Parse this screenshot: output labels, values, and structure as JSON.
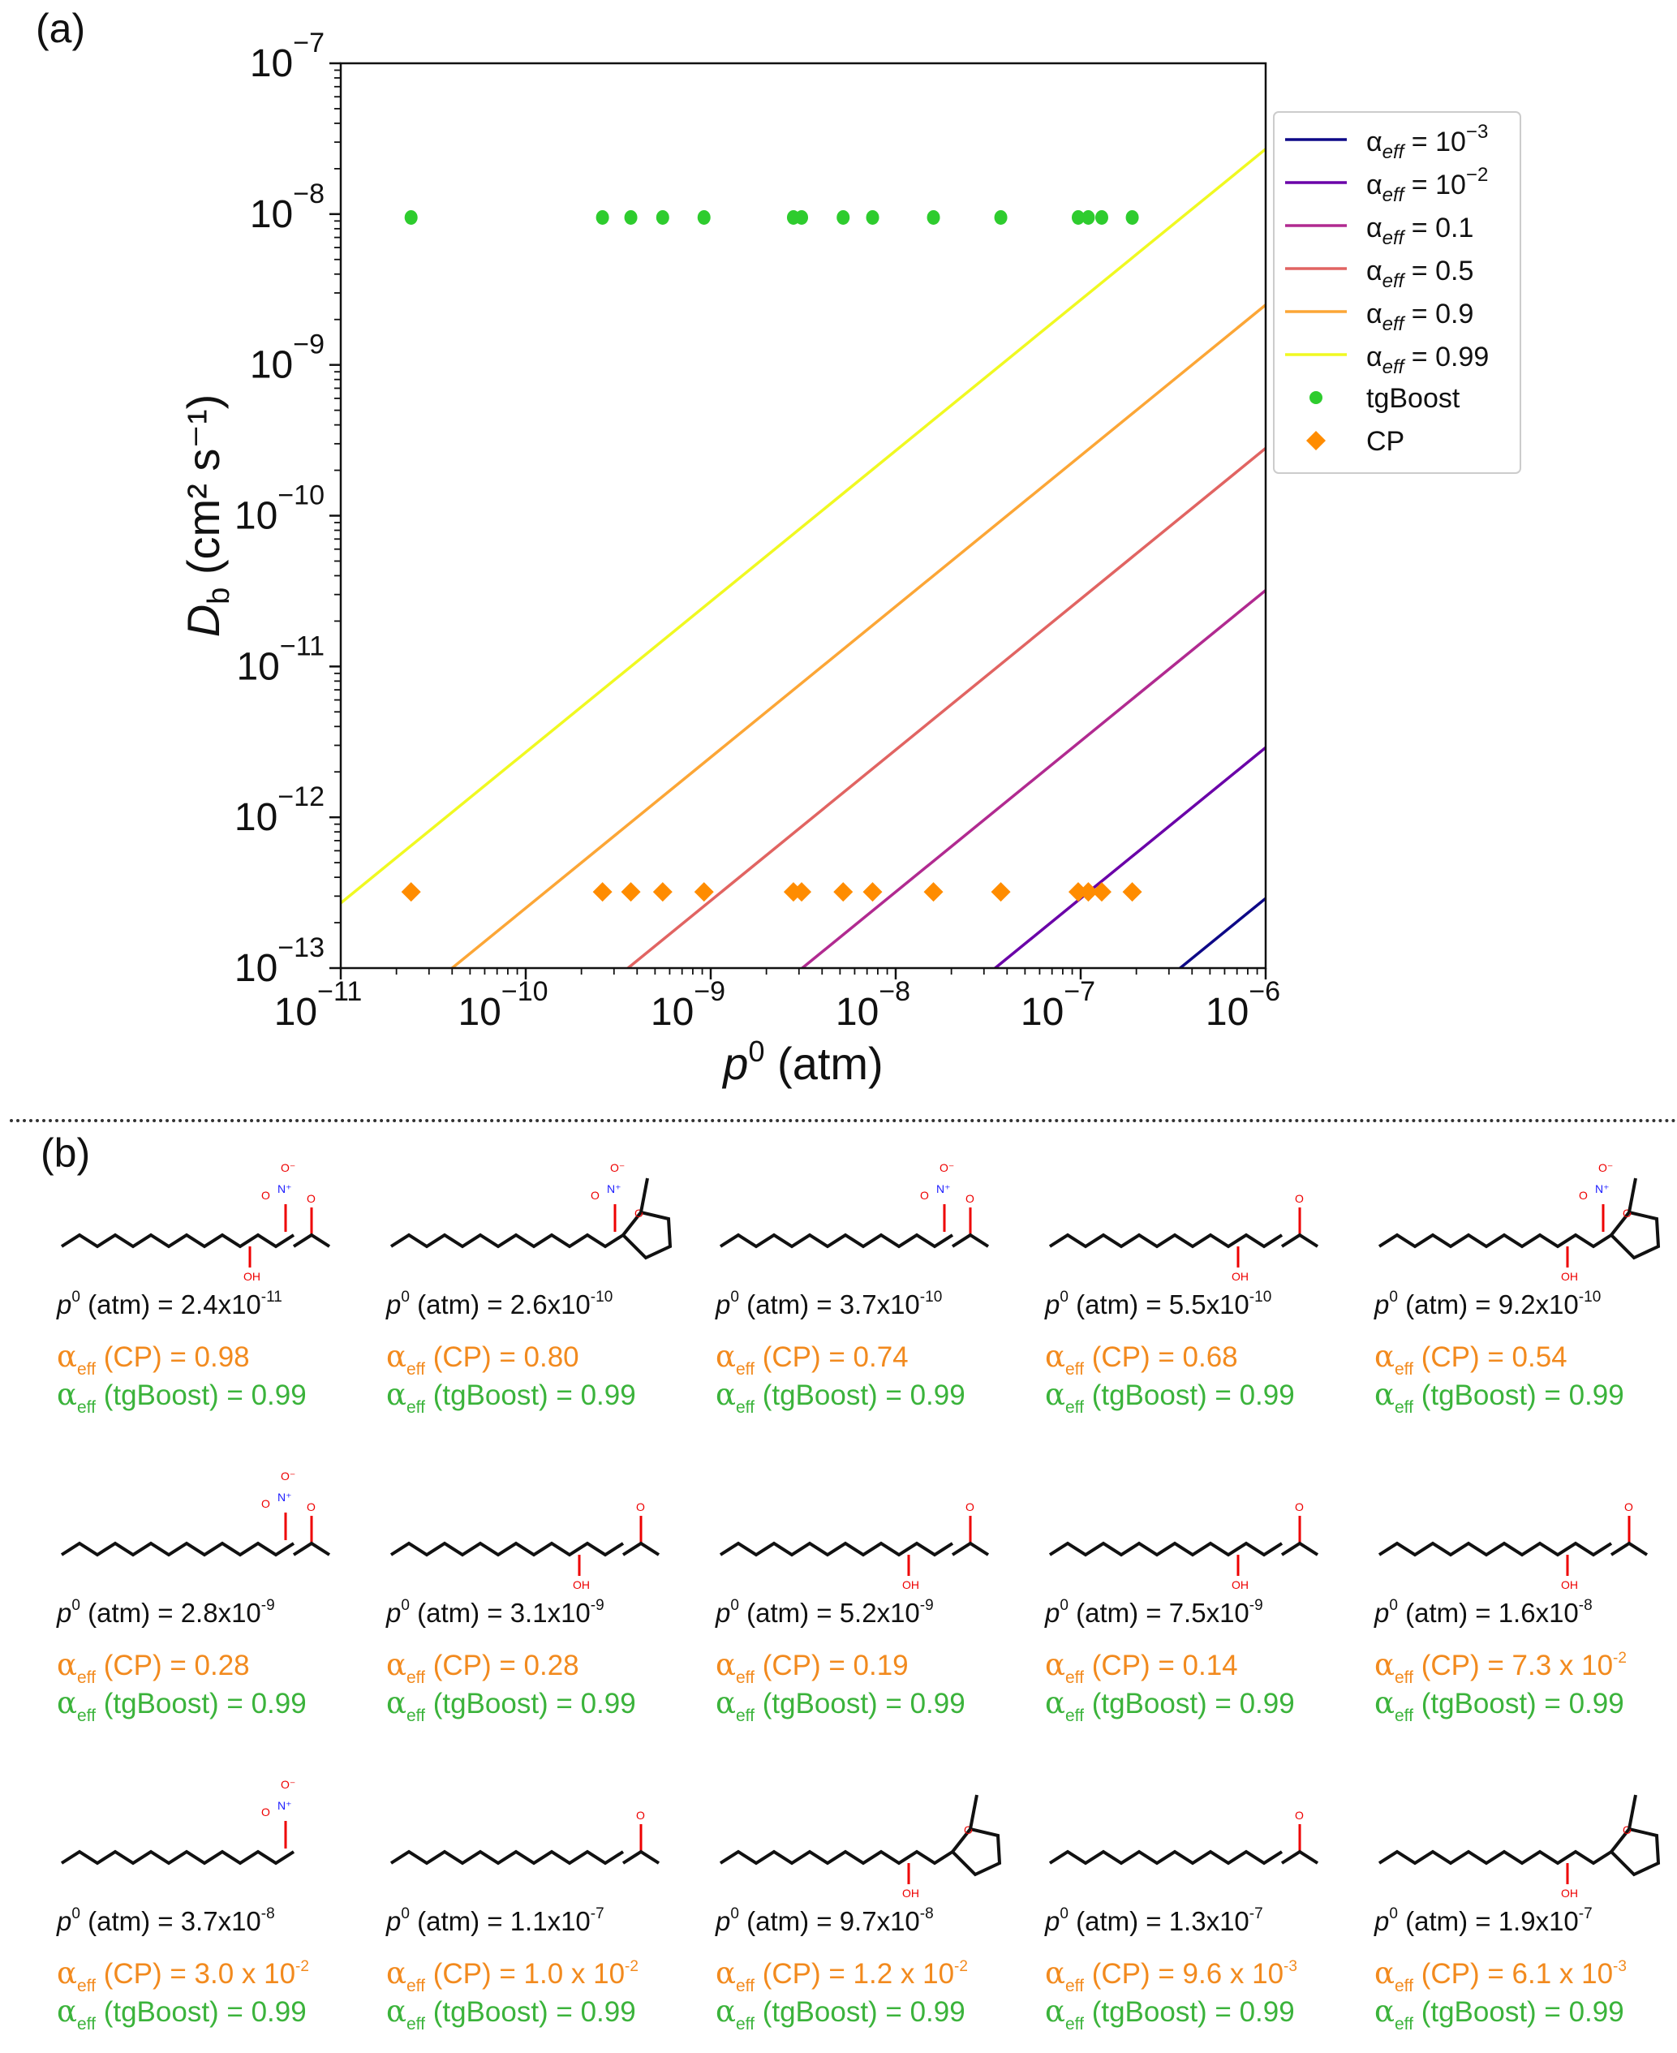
{
  "panel_a": {
    "label": "(a)"
  },
  "panel_b": {
    "label": "(b)"
  },
  "chart_data": {
    "type": "scatter",
    "title": "",
    "xlabel_italic": "p",
    "xlabel_sup": "0",
    "xlabel_rest": " (atm)",
    "ylabel_italic": "D",
    "ylabel_sub": "b",
    "ylabel_rest": " (cm² s⁻¹)",
    "xscale": "log",
    "yscale": "log",
    "xlim": [
      1e-11,
      1e-06
    ],
    "ylim": [
      1e-13,
      1e-07
    ],
    "x_ticks": [
      {
        "base": "10",
        "exp": "−11"
      },
      {
        "base": "10",
        "exp": "−10"
      },
      {
        "base": "10",
        "exp": "−9"
      },
      {
        "base": "10",
        "exp": "−8"
      },
      {
        "base": "10",
        "exp": "−7"
      },
      {
        "base": "10",
        "exp": "−6"
      }
    ],
    "y_ticks": [
      {
        "base": "10",
        "exp": "−13"
      },
      {
        "base": "10",
        "exp": "−12"
      },
      {
        "base": "10",
        "exp": "−11"
      },
      {
        "base": "10",
        "exp": "−10"
      },
      {
        "base": "10",
        "exp": "−9"
      },
      {
        "base": "10",
        "exp": "−8"
      },
      {
        "base": "10",
        "exp": "−7"
      }
    ],
    "grid": false,
    "legend_position": "outside-right-top",
    "lines": [
      {
        "name": "αeff = 10−3",
        "label_main": "α",
        "label_sub": "eff",
        "label_eq": " = 10",
        "label_sup": "−3",
        "color": "#0d0887",
        "y_at_xmax": 2.9e-13
      },
      {
        "name": "αeff = 10−2",
        "label_main": "α",
        "label_sub": "eff",
        "label_eq": " = 10",
        "label_sup": "−2",
        "color": "#6a00a8",
        "y_at_xmax": 2.9e-12
      },
      {
        "name": "αeff = 0.1",
        "label_main": "α",
        "label_sub": "eff",
        "label_eq": " = 0.1",
        "label_sup": "",
        "color": "#b12a90",
        "y_at_xmax": 3.2e-11
      },
      {
        "name": "αeff = 0.5",
        "label_main": "α",
        "label_sub": "eff",
        "label_eq": " = 0.5",
        "label_sup": "",
        "color": "#e16462",
        "y_at_xmax": 2.8e-10
      },
      {
        "name": "αeff = 0.9",
        "label_main": "α",
        "label_sub": "eff",
        "label_eq": " = 0.9",
        "label_sup": "",
        "color": "#fca636",
        "y_at_xmax": 2.5e-09
      },
      {
        "name": "αeff = 0.99",
        "label_main": "α",
        "label_sub": "eff",
        "label_eq": " = 0.99",
        "label_sup": "",
        "color": "#f0f921",
        "y_at_xmax": 2.7e-08
      }
    ],
    "line_slope_loglog": 1,
    "scatter_series": [
      {
        "name": "tgBoost",
        "marker": "circle",
        "color": "#2ecc2e",
        "y": 9.5e-09,
        "x": [
          2.4e-11,
          2.6e-10,
          3.7e-10,
          5.5e-10,
          9.2e-10,
          2.8e-09,
          3.1e-09,
          5.2e-09,
          7.5e-09,
          1.6e-08,
          3.7e-08,
          9.7e-08,
          1.1e-07,
          1.3e-07,
          1.9e-07
        ]
      },
      {
        "name": "CP",
        "marker": "diamond",
        "color": "#ff8c00",
        "y": 3.2e-13,
        "x": [
          2.4e-11,
          2.6e-10,
          3.7e-10,
          5.5e-10,
          9.2e-10,
          2.8e-09,
          3.1e-09,
          5.2e-09,
          7.5e-09,
          1.6e-08,
          3.7e-08,
          9.7e-08,
          1.1e-07,
          1.3e-07,
          1.9e-07
        ]
      }
    ]
  },
  "molecules": [
    {
      "p0_mant": "2.4",
      "p0_exp": "-11",
      "cp": "0.98",
      "cp_exp": "",
      "tg": "0.99",
      "groups": "nitrate-ol-ketone"
    },
    {
      "p0_mant": "2.6",
      "p0_exp": "-10",
      "cp": "0.80",
      "cp_exp": "",
      "tg": "0.99",
      "groups": "thf-dinitrate"
    },
    {
      "p0_mant": "3.7",
      "p0_exp": "-10",
      "cp": "0.74",
      "cp_exp": "",
      "tg": "0.99",
      "groups": "nitrate-diketone"
    },
    {
      "p0_mant": "5.5",
      "p0_exp": "-10",
      "cp": "0.68",
      "cp_exp": "",
      "tg": "0.99",
      "groups": "anhydride-ol"
    },
    {
      "p0_mant": "9.2",
      "p0_exp": "-10",
      "cp": "0.54",
      "cp_exp": "",
      "tg": "0.99",
      "groups": "thf-ol-nitrate"
    },
    {
      "p0_mant": "2.8",
      "p0_exp": "-9",
      "cp": "0.28",
      "cp_exp": "",
      "tg": "0.99",
      "groups": "nitrate-ketone"
    },
    {
      "p0_mant": "3.1",
      "p0_exp": "-9",
      "cp": "0.28",
      "cp_exp": "",
      "tg": "0.99",
      "groups": "hydroxy-ketone"
    },
    {
      "p0_mant": "5.2",
      "p0_exp": "-9",
      "cp": "0.19",
      "cp_exp": "",
      "tg": "0.99",
      "groups": "anhydride-ol"
    },
    {
      "p0_mant": "7.5",
      "p0_exp": "-9",
      "cp": "0.14",
      "cp_exp": "",
      "tg": "0.99",
      "groups": "ol-ketone"
    },
    {
      "p0_mant": "1.6",
      "p0_exp": "-8",
      "cp": "7.3 x 10",
      "cp_exp": "-2",
      "tg": "0.99",
      "groups": "anhydride-ol"
    },
    {
      "p0_mant": "3.7",
      "p0_exp": "-8",
      "cp": "3.0 x 10",
      "cp_exp": "-2",
      "tg": "0.99",
      "groups": "nitrate"
    },
    {
      "p0_mant": "1.1",
      "p0_exp": "-7",
      "cp": "1.0 x 10",
      "cp_exp": "-2",
      "tg": "0.99",
      "groups": "ester-aldehyde"
    },
    {
      "p0_mant": "9.7",
      "p0_exp": "-8",
      "cp": "1.2 x 10",
      "cp_exp": "-2",
      "tg": "0.99",
      "groups": "thf-hemiacetal"
    },
    {
      "p0_mant": "1.3",
      "p0_exp": "-7",
      "cp": "9.6 x 10",
      "cp_exp": "-3",
      "tg": "0.99",
      "groups": "furanone"
    },
    {
      "p0_mant": "1.9",
      "p0_exp": "-7",
      "cp": "6.1 x 10",
      "cp_exp": "-3",
      "tg": "0.99",
      "groups": "thf-ol"
    }
  ],
  "labels": {
    "p0_prefix_italic": "p",
    "p0_prefix_sup": "0",
    "p0_prefix_rest": " (atm) = ",
    "x10": "x10",
    "alpha": "α",
    "eff": "eff",
    "cp_tag": " (CP) = ",
    "tg_tag": " (tgBoost) = "
  }
}
